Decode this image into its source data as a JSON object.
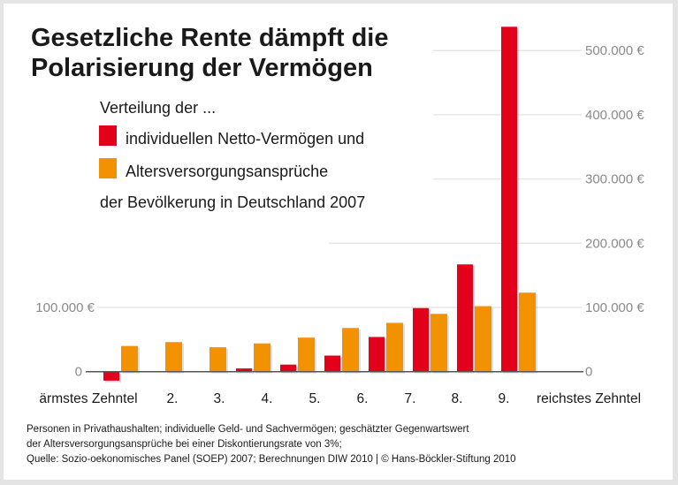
{
  "chart_data": {
    "type": "bar",
    "title": "Gesetzliche Rente dämpft die Polarisierung der Vermögen",
    "title_lines": [
      "Gesetzliche Rente dämpft die",
      "Polarisierung der Vermögen"
    ],
    "legend_intro": "Verteilung der ...",
    "legend_outro": "der Bevölkerung in Deutschland 2007",
    "legend_placement": "top-left",
    "categories": [
      "ärmstes Zehntel",
      "2.",
      "3.",
      "4.",
      "5.",
      "6.",
      "7.",
      "8.",
      "9.",
      "reichstes Zehntel"
    ],
    "series": [
      {
        "name": "individuellen Netto-Vermögen und",
        "color": "#e2001a",
        "values": [
          -14000,
          0,
          0,
          5000,
          11000,
          25000,
          54000,
          99000,
          167000,
          537000
        ]
      },
      {
        "name": "Altersversorgungsansprüche",
        "color": "#f39200",
        "values": [
          40000,
          46000,
          38000,
          44000,
          53000,
          68000,
          76000,
          90000,
          102000,
          123000
        ]
      }
    ],
    "ylim": [
      -20000,
      550000
    ],
    "left_ticks": [
      {
        "value": 0,
        "label": "0"
      },
      {
        "value": 100000,
        "label": "100.000 €"
      }
    ],
    "right_ticks": [
      {
        "value": 0,
        "label": "0"
      },
      {
        "value": 100000,
        "label": "100.000 €"
      },
      {
        "value": 200000,
        "label": "200.000 €"
      },
      {
        "value": 300000,
        "label": "300.000 €"
      },
      {
        "value": 400000,
        "label": "400.000 €"
      },
      {
        "value": 500000,
        "label": "500.000 €"
      }
    ],
    "grid": true
  },
  "footnote": [
    "Personen in Privathaushalten; individuelle Geld- und Sachvermögen; geschätzter Gegenwartswert",
    "der Altersversorgungsansprüche bei einer Diskontierungsrate von 3%;",
    "Quelle: Sozio-oekonomisches Panel (SOEP) 2007; Berechnungen DIW 2010 | © Hans-Böckler-Stiftung 2010"
  ]
}
